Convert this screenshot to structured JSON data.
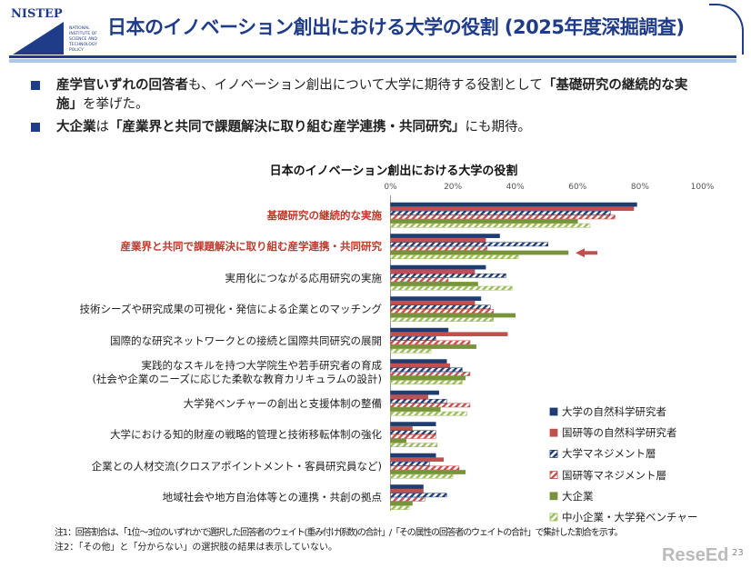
{
  "header": {
    "title": "日本のイノベーション創出における大学の役割 (2025年度深掘調査)",
    "logo_text": "NISTEP NATIONAL INSTITUTE OF SCIENCE AND TECHNOLOGY POLICY"
  },
  "bullets": [
    {
      "bold1": "産学官いずれの回答者",
      "mid": "も、イノベーション創出について大学に期待する役割として",
      "bold2": "「基礎研究の継続的な実施」",
      "end": "を挙げた。"
    },
    {
      "bold1": "大企業",
      "mid": "は",
      "bold2": "「産業界と共同で課題解決に取り組む産学連携・共同研究」",
      "end": "にも期待。"
    }
  ],
  "colors": {
    "accent": "#1f3c88",
    "highlight": "#c0392b",
    "series": [
      "#1f3c73",
      "#c0504d",
      "#1f3c73",
      "#c0504d",
      "#77933c",
      "#9bbb59"
    ]
  },
  "chart_data": {
    "type": "bar",
    "orientation": "horizontal",
    "title": "日本のイノベーション創出における大学の役割",
    "xlim": [
      0,
      100
    ],
    "ticks": [
      "0%",
      "20%",
      "40%",
      "60%",
      "80%",
      "100%"
    ],
    "categories": [
      "基礎研究の継続的な実施",
      "産業界と共同で課題解決に取り組む産学連携・共同研究",
      "実用化につながる応用研究の実施",
      "技術シーズや研究成果の可視化・発信による企業とのマッチング",
      "国際的な研究ネットワークとの接続と国際共同研究の展開",
      "実践的なスキルを持つ大学院生や若手研究者の育成\n(社会や企業のニーズに応じた柔軟な教育カリキュラムの設計)",
      "大学発ベンチャーの創出と支援体制の整備",
      "大学における知的財産の戦略的管理と技術移転体制の強化",
      "企業との人材交流(クロスアポイントメント・客員研究員など)",
      "地域社会や地方自治体等との連携・共創の拠点"
    ],
    "highlighted_categories": [
      0,
      1
    ],
    "series": [
      {
        "name": "大学の自然科学研究者",
        "fill": "solid",
        "values": [
          79,
          35,
          30.5,
          29,
          18.5,
          18,
          15.5,
          14.5,
          14.5,
          10.5
        ]
      },
      {
        "name": "国研等の自然科学研究者",
        "fill": "solid",
        "values": [
          78,
          30.5,
          27,
          27,
          37.5,
          19,
          12,
          7,
          17,
          10.5
        ]
      },
      {
        "name": "大学マネジメント層",
        "fill": "hatched",
        "values": [
          70.5,
          50.5,
          37,
          32,
          14.5,
          23,
          18,
          14.5,
          12.5,
          18
        ]
      },
      {
        "name": "国研等マネジメント層",
        "fill": "hatched",
        "values": [
          72,
          31,
          18.5,
          33,
          25.5,
          25.5,
          25.5,
          14.5,
          22,
          11
        ]
      },
      {
        "name": "大企業",
        "fill": "solid",
        "values": [
          60,
          57,
          28,
          40,
          27.5,
          24,
          16,
          5,
          24,
          7
        ]
      },
      {
        "name": "中小企業・大学発ベンチャー",
        "fill": "hatched",
        "values": [
          64,
          41,
          39,
          33,
          13,
          23,
          24.5,
          15,
          20,
          6
        ]
      }
    ],
    "annotation": "arrow pointing to 大企業 bar of 産業界と共同で課題解決に取り組む産学連携・共同研究",
    "grid": false,
    "legend_placement": "bottom-right"
  },
  "notes": [
    "注1：回答割合は、「1位～3位のいずれかで選択した回答者のウェイト(重み付け係数)の合計」/「その属性の回答者のウェイトの合計」で集計した割合を示す。",
    "注2：「その他」と「分からない」の選択肢の結果は表示していない。"
  ],
  "page_number": "23",
  "watermark": "ReseEd"
}
